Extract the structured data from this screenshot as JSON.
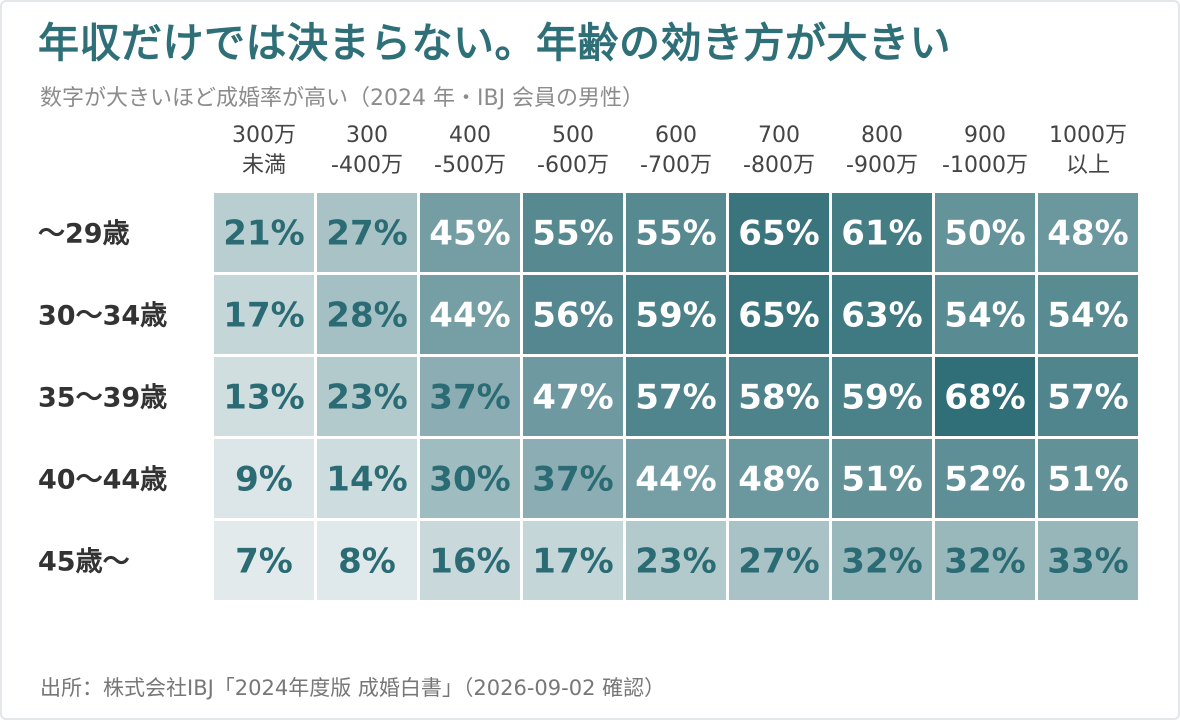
{
  "page": {
    "title": "年収だけでは決まらない。年齢の効き方が大きい",
    "subtitle": "数字が大きいほど成婚率が高い（2024 年・IBJ 会員の男性）",
    "source": "出所：株式会社IBJ「2024年度版 成婚白書」（2026-09-02 確認）"
  },
  "colors": {
    "title": "#2e6f78",
    "low": "#f6f8f9",
    "high": "#2b6b74",
    "dark_text": "#2b6b74",
    "light_text": "#ffffff"
  },
  "chart_data": {
    "type": "heatmap",
    "title": "年収だけでは決まらない。年齢の効き方が大きい",
    "subtitle": "数字が大きいほど成婚率が高い（2024 年・IBJ 会員の男性）",
    "columns": [
      [
        "300万",
        "未満"
      ],
      [
        "300",
        "-400万"
      ],
      [
        "400",
        "-500万"
      ],
      [
        "500",
        "-600万"
      ],
      [
        "600",
        "-700万"
      ],
      [
        "700",
        "-800万"
      ],
      [
        "800",
        "-900万"
      ],
      [
        "900",
        "-1000万"
      ],
      [
        "1000万",
        "以上"
      ]
    ],
    "rows": [
      "〜29歳",
      "30〜34歳",
      "35〜39歳",
      "40〜44歳",
      "45歳〜"
    ],
    "values": [
      [
        21,
        27,
        45,
        55,
        55,
        65,
        61,
        50,
        48
      ],
      [
        17,
        28,
        44,
        56,
        59,
        65,
        63,
        54,
        54
      ],
      [
        13,
        23,
        37,
        47,
        57,
        58,
        59,
        68,
        57
      ],
      [
        9,
        14,
        30,
        37,
        44,
        48,
        51,
        52,
        51
      ],
      [
        7,
        8,
        16,
        17,
        23,
        27,
        32,
        32,
        33
      ]
    ],
    "unit": "%",
    "value_range": [
      0,
      70
    ],
    "legend": "none"
  }
}
